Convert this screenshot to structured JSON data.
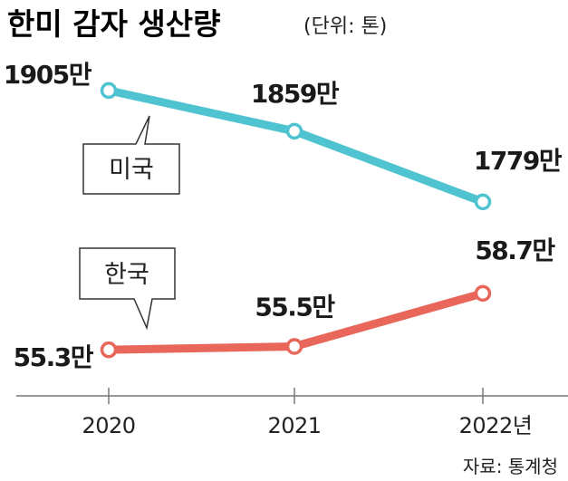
{
  "title": "한미 감자 생산량",
  "unit_note": "(단위: 톤)",
  "source": "자료: 통계청",
  "colors": {
    "usa": "#4fc3cf",
    "korea": "#e8665a",
    "axis": "#666666"
  },
  "chart_data": {
    "type": "line",
    "title": "한미 감자 생산량",
    "subtitle": "(단위: 톤)",
    "x": [
      "2020",
      "2021",
      "2022"
    ],
    "x_tick_labels": [
      "2020",
      "2021",
      "2022년"
    ],
    "series": [
      {
        "name": "미국",
        "values": [
          19050000,
          18590000,
          17790000
        ],
        "labels": [
          "1905만",
          "1859만",
          "1779만"
        ]
      },
      {
        "name": "한국",
        "values": [
          553000,
          555000,
          587000
        ],
        "labels": [
          "55.3만",
          "55.5만",
          "58.7만"
        ]
      }
    ],
    "axis_break": true,
    "grid": false
  }
}
